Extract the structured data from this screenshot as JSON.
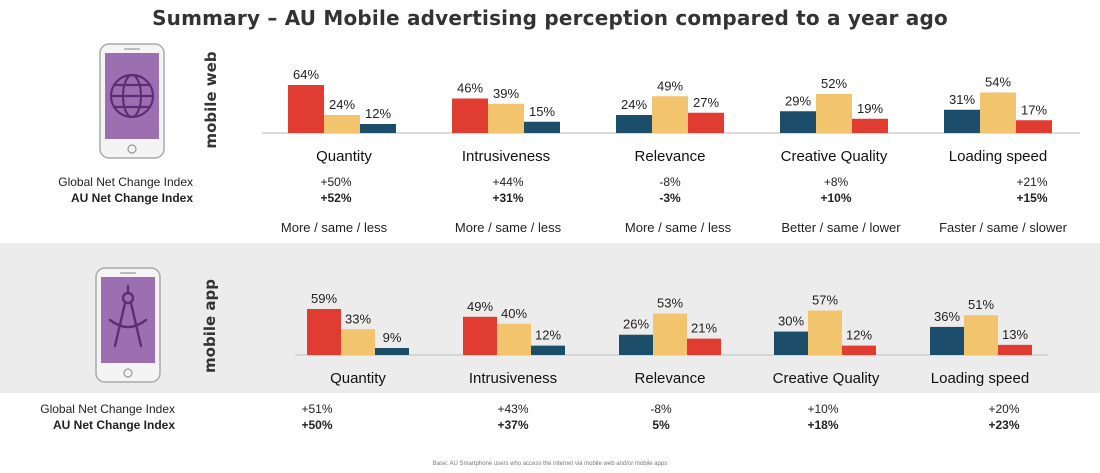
{
  "title": "Summary – AU Mobile advertising perception compared to a year ago",
  "colors": {
    "more": "#E03C31",
    "same": "#F2C46D",
    "less": "#1C4E6B",
    "device": "#9C6FB0"
  },
  "icons": {
    "web": "globe-icon",
    "app": "compass-tool-icon"
  },
  "chart_data": [
    {
      "type": "bar",
      "section_label": "mobile web",
      "categories": [
        "Quantity",
        "Intrusiveness",
        "Relevance",
        "Creative Quality",
        "Loading speed"
      ],
      "values": [
        [
          64,
          24,
          12
        ],
        [
          46,
          39,
          15
        ],
        [
          24,
          49,
          27
        ],
        [
          29,
          52,
          19
        ],
        [
          31,
          54,
          17
        ]
      ],
      "bar_colors": [
        [
          "more",
          "same",
          "less"
        ],
        [
          "more",
          "same",
          "less"
        ],
        [
          "less",
          "same",
          "more"
        ],
        [
          "less",
          "same",
          "more"
        ],
        [
          "less",
          "same",
          "more"
        ]
      ],
      "global_index_label": "Global Net Change Index",
      "au_index_label": "AU Net Change Index",
      "global_index": [
        "+50%",
        "+44%",
        "-8%",
        "+8%",
        "+21%"
      ],
      "au_index": [
        "+52%",
        "+31%",
        "-3%",
        "+10%",
        "+15%"
      ]
    },
    {
      "type": "bar",
      "section_label": "mobile app",
      "categories": [
        "Quantity",
        "Intrusiveness",
        "Relevance",
        "Creative Quality",
        "Loading speed"
      ],
      "values": [
        [
          59,
          33,
          9
        ],
        [
          49,
          40,
          12
        ],
        [
          26,
          53,
          21
        ],
        [
          30,
          57,
          12
        ],
        [
          36,
          51,
          13
        ]
      ],
      "bar_colors": [
        [
          "more",
          "same",
          "less"
        ],
        [
          "more",
          "same",
          "less"
        ],
        [
          "less",
          "same",
          "more"
        ],
        [
          "less",
          "same",
          "more"
        ],
        [
          "less",
          "same",
          "more"
        ]
      ],
      "global_index_label": "Global Net Change Index",
      "au_index_label": "AU Net Change Index",
      "global_index": [
        "+51%",
        "+43%",
        "-8%",
        "+10%",
        "+20%"
      ],
      "au_index": [
        "+50%",
        "+37%",
        "5%",
        "+18%",
        "+23%"
      ]
    }
  ],
  "legend": [
    "More / same / less",
    "More / same / less",
    "More / same / less",
    "Better / same / lower",
    "Faster / same / slower"
  ],
  "footnote": "Base: AU Smartphone users who access the internet via mobile web and/or mobile apps"
}
